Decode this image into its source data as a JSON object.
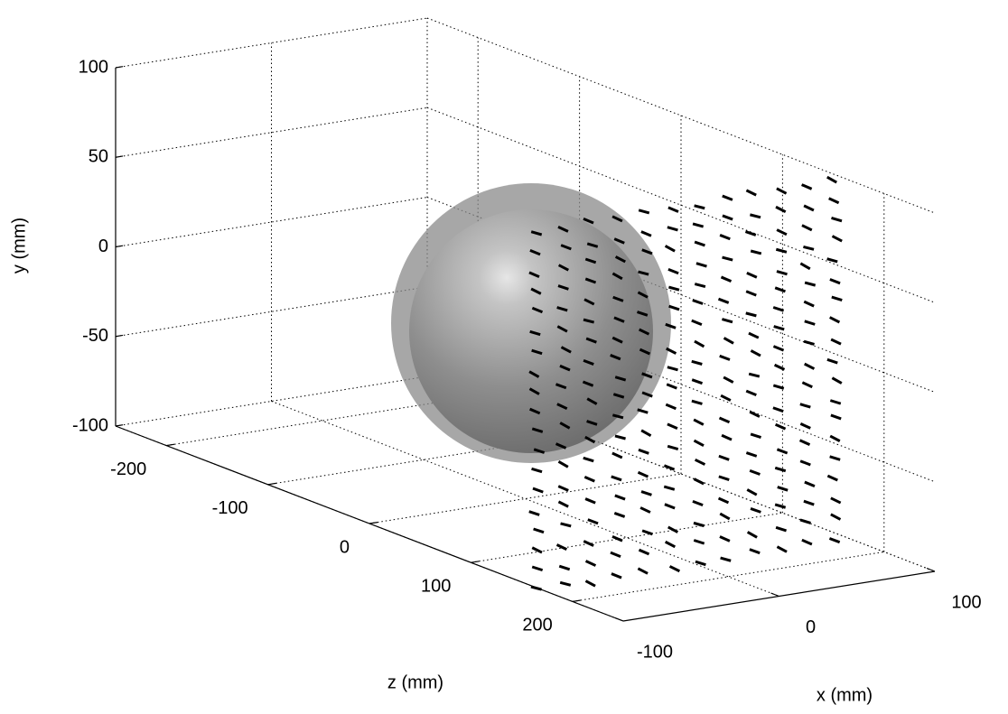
{
  "chart_data": {
    "type": "3d",
    "xlabel": "x (mm)",
    "ylabel": "y (mm)",
    "zlabel": "z (mm)",
    "xlim": [
      -100,
      100
    ],
    "ylim": [
      -100,
      100
    ],
    "zlim": [
      -250,
      250
    ],
    "xticks": [
      -100,
      0,
      100
    ],
    "yticks": [
      -100,
      -50,
      0,
      50,
      100
    ],
    "zticks": [
      -200,
      -100,
      0,
      100,
      200
    ],
    "grid": true
  }
}
